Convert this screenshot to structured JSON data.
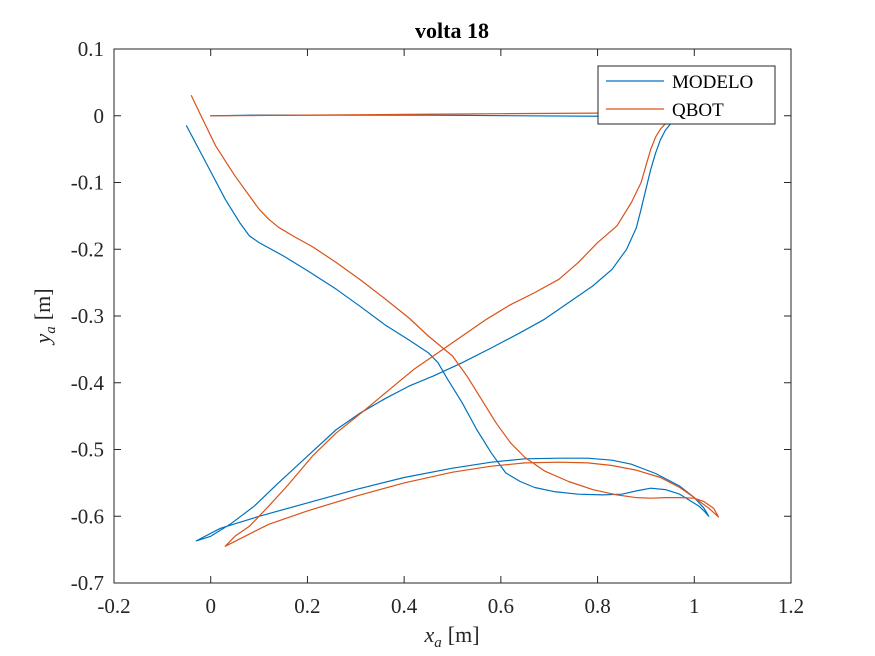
{
  "chart_data": {
    "type": "line",
    "title": "volta 18",
    "xlabel": {
      "var": "x",
      "sub": "a",
      "unit": "[m]"
    },
    "ylabel": {
      "var": "y",
      "sub": "a",
      "unit": "[m]"
    },
    "xlim": [
      -0.2,
      1.2
    ],
    "ylim": [
      -0.7,
      0.1
    ],
    "xticks": [
      "-0.2",
      "0",
      "0.2",
      "0.4",
      "0.6",
      "0.8",
      "1",
      "1.2"
    ],
    "yticks": [
      "0.1",
      "0",
      "-0.1",
      "-0.2",
      "-0.3",
      "-0.4",
      "-0.5",
      "-0.6",
      "-0.7"
    ],
    "grid": false,
    "legend_position": "top-right",
    "series": [
      {
        "name": "MODELO",
        "color": "#0072BD",
        "x": [
          -0.05,
          -0.01,
          0.03,
          0.06,
          0.08,
          0.1,
          0.15,
          0.2,
          0.26,
          0.31,
          0.36,
          0.41,
          0.45,
          0.47,
          0.49,
          0.52,
          0.55,
          0.58,
          0.61,
          0.64,
          0.67,
          0.71,
          0.76,
          0.81,
          0.85,
          0.88,
          0.91,
          0.94,
          0.97,
          0.99,
          1.01,
          1.02,
          1.03,
          1.02,
          1.0,
          0.97,
          0.92,
          0.87,
          0.83,
          0.78,
          0.72,
          0.65,
          0.58,
          0.5,
          0.4,
          0.3,
          0.2,
          0.1,
          0.02,
          -0.03,
          0.0,
          0.04,
          0.09,
          0.14,
          0.2,
          0.26,
          0.31,
          0.36,
          0.41,
          0.46,
          0.52,
          0.58,
          0.64,
          0.69,
          0.74,
          0.79,
          0.83,
          0.86,
          0.88,
          0.89,
          0.9,
          0.91,
          0.92,
          0.93,
          0.94,
          0.95,
          0.96,
          0.97,
          0.98,
          0.99,
          1.0,
          0.85,
          0.65,
          0.45,
          0.25,
          0.1,
          0.0
        ],
        "y": [
          -0.015,
          -0.07,
          -0.125,
          -0.16,
          -0.18,
          -0.19,
          -0.21,
          -0.232,
          -0.26,
          -0.286,
          -0.313,
          -0.336,
          -0.355,
          -0.37,
          -0.395,
          -0.43,
          -0.47,
          -0.505,
          -0.535,
          -0.548,
          -0.557,
          -0.563,
          -0.567,
          -0.568,
          -0.567,
          -0.562,
          -0.558,
          -0.56,
          -0.567,
          -0.576,
          -0.585,
          -0.592,
          -0.6,
          -0.588,
          -0.572,
          -0.555,
          -0.536,
          -0.522,
          -0.516,
          -0.513,
          -0.513,
          -0.514,
          -0.519,
          -0.528,
          -0.542,
          -0.56,
          -0.58,
          -0.6,
          -0.618,
          -0.637,
          -0.63,
          -0.612,
          -0.585,
          -0.55,
          -0.51,
          -0.47,
          -0.445,
          -0.424,
          -0.405,
          -0.39,
          -0.37,
          -0.348,
          -0.325,
          -0.305,
          -0.28,
          -0.255,
          -0.23,
          -0.2,
          -0.168,
          -0.14,
          -0.11,
          -0.08,
          -0.056,
          -0.036,
          -0.022,
          -0.013,
          -0.008,
          -0.006,
          -0.005,
          -0.005,
          -0.003,
          -0.001,
          0.0,
          0.001,
          0.001,
          0.001,
          0.0
        ]
      },
      {
        "name": "QBOT",
        "color": "#D95319",
        "x": [
          -0.04,
          -0.02,
          0.01,
          0.05,
          0.08,
          0.1,
          0.12,
          0.14,
          0.17,
          0.21,
          0.26,
          0.31,
          0.36,
          0.41,
          0.45,
          0.5,
          0.53,
          0.56,
          0.59,
          0.62,
          0.65,
          0.69,
          0.74,
          0.79,
          0.84,
          0.88,
          0.91,
          0.94,
          0.97,
          1.0,
          1.02,
          1.04,
          1.05,
          1.03,
          1.0,
          0.97,
          0.93,
          0.88,
          0.83,
          0.78,
          0.72,
          0.65,
          0.58,
          0.5,
          0.4,
          0.3,
          0.2,
          0.12,
          0.03,
          0.05,
          0.08,
          0.12,
          0.16,
          0.21,
          0.26,
          0.32,
          0.37,
          0.42,
          0.47,
          0.52,
          0.57,
          0.62,
          0.67,
          0.72,
          0.76,
          0.8,
          0.84,
          0.87,
          0.89,
          0.9,
          0.91,
          0.92,
          0.93,
          0.94,
          0.95,
          0.96,
          0.97,
          0.98,
          0.99,
          1.0,
          0.95,
          0.8,
          0.6,
          0.4,
          0.2,
          0.0
        ],
        "y": [
          0.03,
          0.0,
          -0.045,
          -0.09,
          -0.12,
          -0.14,
          -0.155,
          -0.167,
          -0.18,
          -0.196,
          -0.22,
          -0.246,
          -0.274,
          -0.303,
          -0.33,
          -0.36,
          -0.39,
          -0.425,
          -0.46,
          -0.49,
          -0.512,
          -0.532,
          -0.548,
          -0.56,
          -0.568,
          -0.572,
          -0.573,
          -0.572,
          -0.572,
          -0.573,
          -0.578,
          -0.588,
          -0.601,
          -0.588,
          -0.572,
          -0.557,
          -0.542,
          -0.531,
          -0.524,
          -0.52,
          -0.519,
          -0.52,
          -0.525,
          -0.534,
          -0.55,
          -0.57,
          -0.592,
          -0.612,
          -0.645,
          -0.63,
          -0.615,
          -0.585,
          -0.553,
          -0.51,
          -0.475,
          -0.44,
          -0.41,
          -0.38,
          -0.355,
          -0.33,
          -0.305,
          -0.283,
          -0.265,
          -0.245,
          -0.22,
          -0.19,
          -0.165,
          -0.13,
          -0.1,
          -0.075,
          -0.05,
          -0.032,
          -0.02,
          -0.012,
          -0.007,
          -0.004,
          0.0,
          0.002,
          0.003,
          0.004,
          0.004,
          0.004,
          0.003,
          0.002,
          0.001,
          0.0
        ]
      }
    ]
  }
}
